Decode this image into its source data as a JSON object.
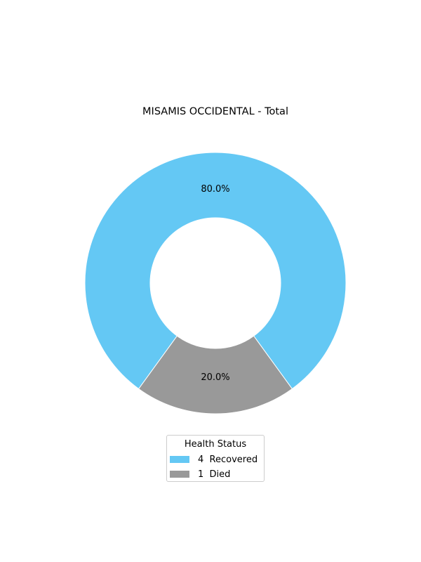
{
  "chart_data": {
    "type": "pie",
    "title": "MISAMIS OCCIDENTAL - Total",
    "donut": true,
    "slices": [
      {
        "label": "Recovered",
        "value": 4,
        "percent_label": "80.0%",
        "color": "#64c8f4"
      },
      {
        "label": "Died",
        "value": 1,
        "percent_label": "20.0%",
        "color": "#999999"
      }
    ],
    "legend": {
      "title": "Health Status",
      "entries": [
        "4  Recovered",
        "1  Died"
      ],
      "placement": "bottom-center"
    }
  }
}
